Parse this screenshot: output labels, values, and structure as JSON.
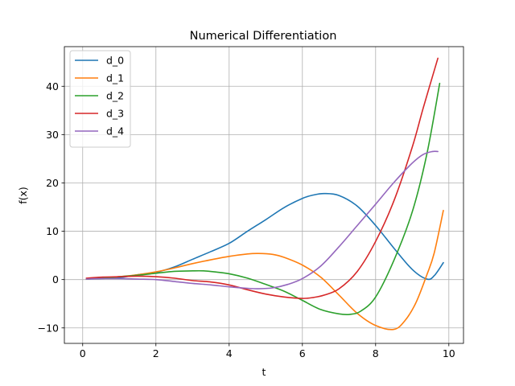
{
  "chart_data": {
    "type": "line",
    "title": "Numerical Differentiation",
    "xlabel": "t",
    "ylabel": "f(x)",
    "xlim": [
      -0.5,
      10.4
    ],
    "ylim": [
      -13.2,
      48.2
    ],
    "xticks": [
      0,
      2,
      4,
      6,
      8,
      10
    ],
    "yticks": [
      -10,
      0,
      10,
      20,
      30,
      40
    ],
    "xtick_labels": [
      "0",
      "2",
      "4",
      "6",
      "8",
      "10"
    ],
    "ytick_labels": [
      "−10",
      "0",
      "10",
      "20",
      "30",
      "40"
    ],
    "grid": true,
    "legend_position": "upper-left",
    "series": [
      {
        "name": "d_0",
        "color": "#1f77b4",
        "x": [
          0.1,
          0.5,
          1.0,
          1.5,
          2.0,
          2.5,
          3.0,
          3.5,
          4.0,
          4.5,
          5.0,
          5.5,
          6.0,
          6.3,
          6.6,
          7.0,
          7.5,
          8.0,
          8.5,
          9.0,
          9.4,
          9.6,
          9.85
        ],
        "y": [
          0.1,
          0.2,
          0.4,
          1.0,
          1.5,
          2.6,
          4.2,
          5.8,
          7.5,
          10.0,
          12.4,
          14.9,
          16.8,
          17.5,
          17.8,
          17.4,
          15.2,
          11.2,
          6.5,
          2.1,
          0.1,
          0.8,
          3.5
        ]
      },
      {
        "name": "d_1",
        "color": "#ff7f0e",
        "x": [
          0.1,
          0.5,
          1.0,
          1.5,
          2.0,
          2.5,
          3.0,
          3.5,
          4.0,
          4.5,
          4.8,
          5.2,
          5.5,
          6.0,
          6.5,
          7.0,
          7.5,
          8.0,
          8.5,
          8.8,
          9.1,
          9.4,
          9.6,
          9.85
        ],
        "y": [
          0.1,
          0.3,
          0.6,
          1.0,
          1.6,
          2.4,
          3.3,
          4.1,
          4.8,
          5.3,
          5.4,
          5.2,
          4.6,
          3.0,
          0.5,
          -3.2,
          -7.0,
          -9.5,
          -10.3,
          -8.5,
          -4.8,
          1.0,
          5.5,
          14.3
        ]
      },
      {
        "name": "d_2",
        "color": "#2ca02c",
        "x": [
          0.1,
          0.5,
          1.0,
          1.5,
          2.0,
          2.5,
          3.0,
          3.3,
          3.6,
          4.0,
          4.5,
          5.0,
          5.5,
          6.0,
          6.5,
          7.0,
          7.3,
          7.6,
          8.0,
          8.5,
          9.0,
          9.4,
          9.75
        ],
        "y": [
          0.1,
          0.3,
          0.6,
          0.9,
          1.3,
          1.7,
          1.8,
          1.8,
          1.6,
          1.2,
          0.3,
          -1.0,
          -2.4,
          -4.3,
          -6.2,
          -7.1,
          -7.2,
          -6.5,
          -3.6,
          4.0,
          14.0,
          26.0,
          40.6
        ]
      },
      {
        "name": "d_3",
        "color": "#d62728",
        "x": [
          0.1,
          0.5,
          1.0,
          1.5,
          2.0,
          2.5,
          3.0,
          3.5,
          4.0,
          4.5,
          5.0,
          5.5,
          6.0,
          6.3,
          6.6,
          7.0,
          7.5,
          8.0,
          8.5,
          9.0,
          9.3,
          9.7
        ],
        "y": [
          0.3,
          0.5,
          0.6,
          0.7,
          0.6,
          0.3,
          -0.2,
          -0.5,
          -1.1,
          -2.1,
          -3.0,
          -3.6,
          -3.9,
          -3.7,
          -3.2,
          -1.9,
          1.7,
          7.9,
          16.3,
          27.4,
          35.5,
          45.8
        ]
      },
      {
        "name": "d_4",
        "color": "#9467bd",
        "x": [
          0.1,
          0.5,
          1.0,
          1.5,
          2.0,
          2.5,
          3.0,
          3.5,
          4.0,
          4.5,
          4.8,
          5.2,
          5.6,
          6.0,
          6.5,
          7.0,
          7.5,
          8.0,
          8.5,
          9.0,
          9.3,
          9.55,
          9.7
        ],
        "y": [
          0.1,
          0.2,
          0.2,
          0.1,
          0.0,
          -0.4,
          -0.8,
          -1.1,
          -1.5,
          -1.8,
          -1.9,
          -1.7,
          -1.0,
          0.2,
          2.8,
          6.8,
          11.2,
          15.6,
          20.1,
          24.1,
          25.9,
          26.5,
          26.5
        ]
      }
    ]
  }
}
